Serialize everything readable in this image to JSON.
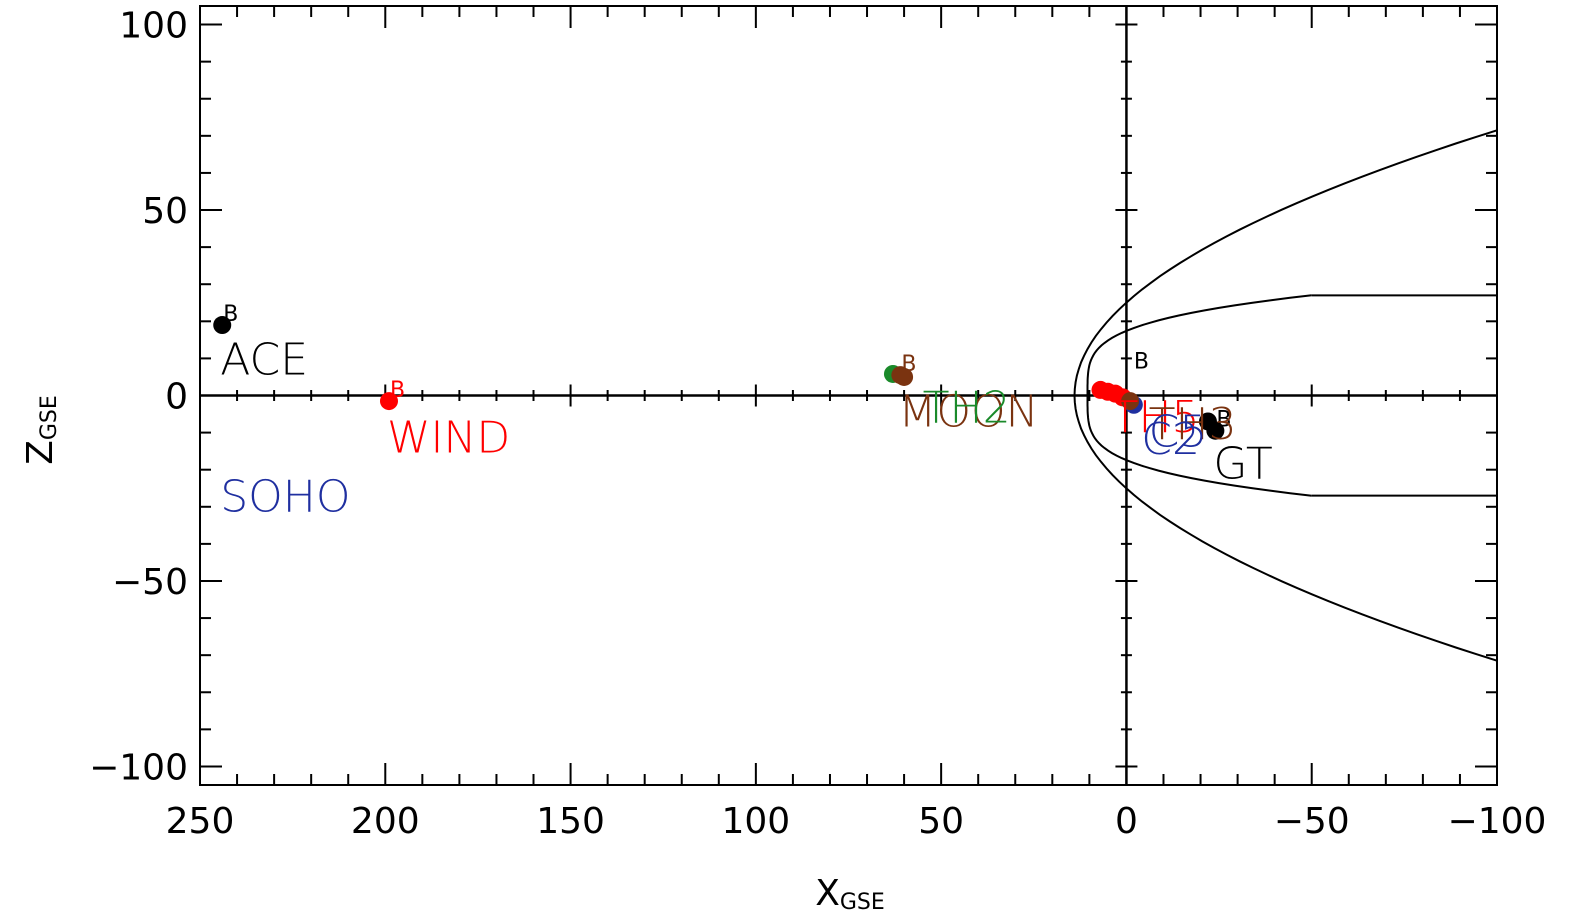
{
  "chart_data": {
    "type": "scatter",
    "xlabel": "X",
    "xlabel_sub": "GSE",
    "ylabel": "Z",
    "ylabel_sub": "GSE",
    "xlim": [
      250,
      -100
    ],
    "ylim": [
      -105,
      105
    ],
    "x_ticks": [
      {
        "value": 250,
        "label": "250"
      },
      {
        "value": 200,
        "label": "200"
      },
      {
        "value": 150,
        "label": "150"
      },
      {
        "value": 100,
        "label": "100"
      },
      {
        "value": 50,
        "label": "50"
      },
      {
        "value": 0,
        "label": "0"
      },
      {
        "value": -50,
        "label": "−50"
      },
      {
        "value": -100,
        "label": "−100"
      }
    ],
    "y_ticks": [
      {
        "value": 100,
        "label": "100"
      },
      {
        "value": 50,
        "label": "50"
      },
      {
        "value": 0,
        "label": "0"
      },
      {
        "value": -50,
        "label": "−50"
      },
      {
        "value": -100,
        "label": "−100"
      }
    ],
    "x_minor_step": 10,
    "y_minor_step": 10,
    "grid": false,
    "zero_lines": true,
    "spacecraft": [
      {
        "name": "ACE",
        "color": "#000000",
        "x": 244,
        "z": 19,
        "marker_letter": "B",
        "label_x": 244,
        "label_z": 10
      },
      {
        "name": "WIND",
        "color": "#ff0000",
        "x": 199,
        "z": -1.5,
        "marker_letter": "B",
        "label_x": 199,
        "label_z": -11
      },
      {
        "name": "SOHO",
        "color": "#1f2fa0",
        "x": null,
        "z": null,
        "marker_letter": "",
        "label_x": 244,
        "label_z": -27
      },
      {
        "name": "MOON",
        "color": "#7a3310",
        "x": 61,
        "z": 5.5,
        "marker_letter": "B",
        "label_x": 61,
        "label_z": -4
      },
      {
        "name": "GT",
        "color": "#000000",
        "x": -24,
        "z": -9.5,
        "marker_letter": "B",
        "label_x": -24,
        "label_z": -18
      }
    ],
    "cluster_points": [
      {
        "color": "#1a8a2a",
        "x": 63,
        "z": 5.8
      },
      {
        "color": "#7a3310",
        "x": 60,
        "z": 5.0
      },
      {
        "color": "#000000",
        "x": -22,
        "z": -7
      },
      {
        "color": "#ff0000",
        "x": 7,
        "z": 1.5
      },
      {
        "color": "#ff0000",
        "x": 5,
        "z": 1.0
      },
      {
        "color": "#ff0000",
        "x": 3,
        "z": 0.5
      },
      {
        "color": "#ff0000",
        "x": 1,
        "z": -0.5
      },
      {
        "color": "#1f2fa0",
        "x": -2,
        "z": -2.5
      },
      {
        "color": "#7a3310",
        "x": -1,
        "z": -1.5
      }
    ],
    "near_earth_labels": [
      {
        "text": "TH2",
        "color": "#1a8a2a",
        "x": 55,
        "z": -3.5
      },
      {
        "text": "B",
        "color": "#000000",
        "x": -2,
        "z": 11
      },
      {
        "text": "TH5",
        "color": "#ff0000",
        "x": 4,
        "z": -6
      },
      {
        "text": "TH3",
        "color": "#7a3310",
        "x": -6,
        "z": -8
      },
      {
        "text": "C2",
        "color": "#1f2fa0",
        "x": -4,
        "z": -12
      },
      {
        "text": "C5",
        "color": "#1f2fa0",
        "x": -6,
        "z": -10
      }
    ],
    "boundaries": [
      {
        "name": "bow shock",
        "nose_x": 14,
        "flank_z": 71.5,
        "tail_x": -100
      },
      {
        "name": "magnetopause",
        "nose_x": 10.5,
        "flank_z": 27,
        "tail_x": -100
      }
    ]
  }
}
